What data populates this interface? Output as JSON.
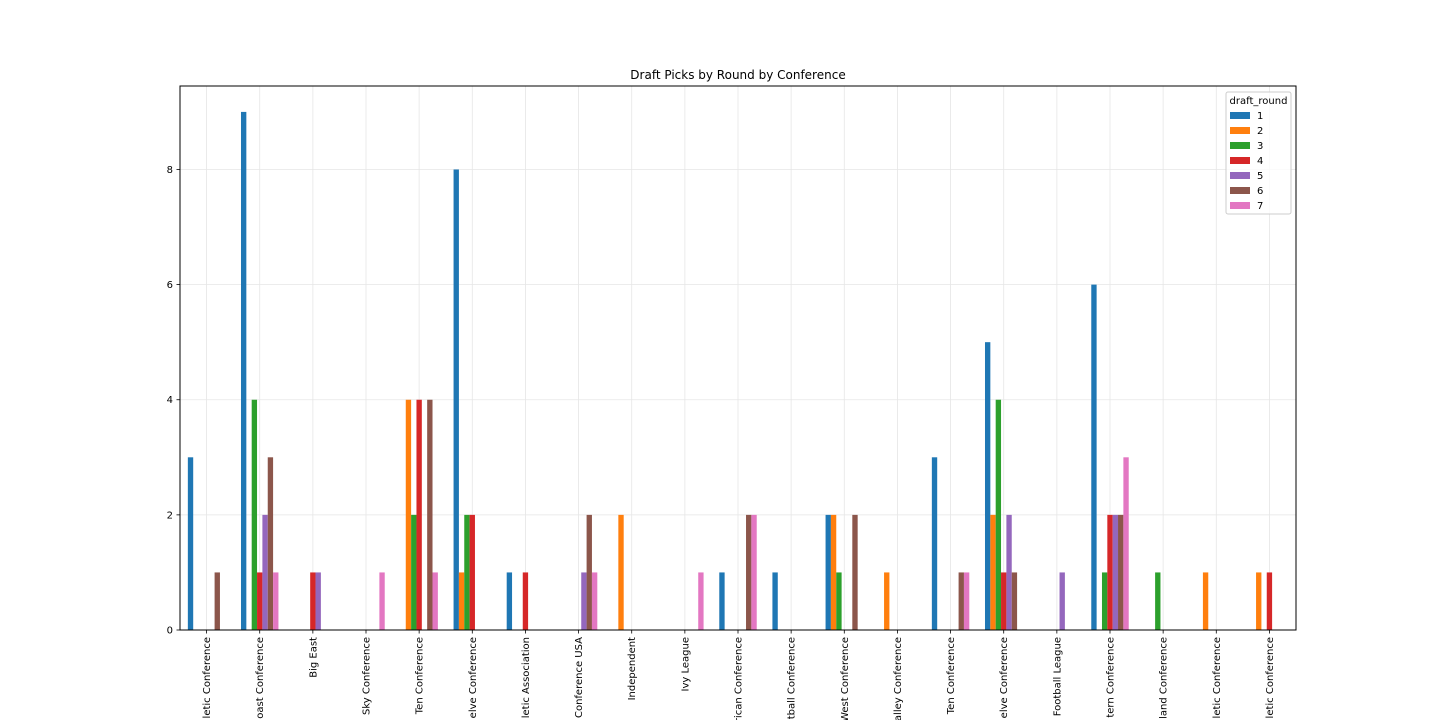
{
  "chart_data": {
    "type": "bar",
    "title": "Draft Picks by Round by Conference",
    "xlabel": "",
    "ylabel": "",
    "ylim": [
      0,
      9.45
    ],
    "yticks": [
      0,
      2,
      4,
      6,
      8
    ],
    "grid": true,
    "legend_title": "draft_round",
    "legend_position": "top-right",
    "categories": [
      "letic Conference",
      "oast Conference",
      "Big East",
      " Sky Conference",
      "Ten Conference",
      "elve Conference",
      "letic Association",
      "Conference USA",
      "Independent",
      "Ivy League",
      "rican Conference",
      "tball Conference",
      "West Conference",
      "alley Conference",
      "Ten Conference",
      "elve Conference",
      "Football League",
      "tern Conference",
      "land Conference",
      "letic Conference",
      "letic Conference"
    ],
    "series": [
      {
        "name": "1",
        "color": "#1f77b4",
        "values": [
          3,
          9,
          0,
          0,
          0,
          8,
          1,
          0,
          0,
          0,
          1,
          1,
          2,
          0,
          3,
          5,
          0,
          6,
          0,
          0,
          0
        ]
      },
      {
        "name": "2",
        "color": "#ff7f0e",
        "values": [
          0,
          0,
          0,
          0,
          4,
          1,
          0,
          0,
          2,
          0,
          0,
          0,
          2,
          1,
          0,
          2,
          0,
          0,
          0,
          1,
          1
        ]
      },
      {
        "name": "3",
        "color": "#2ca02c",
        "values": [
          0,
          4,
          0,
          0,
          2,
          2,
          0,
          0,
          0,
          0,
          0,
          0,
          1,
          0,
          0,
          4,
          0,
          1,
          1,
          0,
          0
        ]
      },
      {
        "name": "4",
        "color": "#d62728",
        "values": [
          0,
          1,
          1,
          0,
          4,
          2,
          1,
          0,
          0,
          0,
          0,
          0,
          0,
          0,
          0,
          1,
          0,
          2,
          0,
          0,
          1
        ]
      },
      {
        "name": "5",
        "color": "#9467bd",
        "values": [
          0,
          2,
          1,
          0,
          0,
          0,
          0,
          1,
          0,
          0,
          0,
          0,
          0,
          0,
          0,
          2,
          1,
          2,
          0,
          0,
          0
        ]
      },
      {
        "name": "6",
        "color": "#8c564b",
        "values": [
          1,
          3,
          0,
          0,
          4,
          0,
          0,
          2,
          0,
          0,
          2,
          0,
          2,
          0,
          1,
          1,
          0,
          2,
          0,
          0,
          0
        ]
      },
      {
        "name": "7",
        "color": "#e377c2",
        "values": [
          0,
          1,
          0,
          1,
          1,
          0,
          0,
          1,
          0,
          1,
          2,
          0,
          0,
          0,
          1,
          0,
          0,
          3,
          0,
          0,
          0
        ]
      }
    ]
  }
}
